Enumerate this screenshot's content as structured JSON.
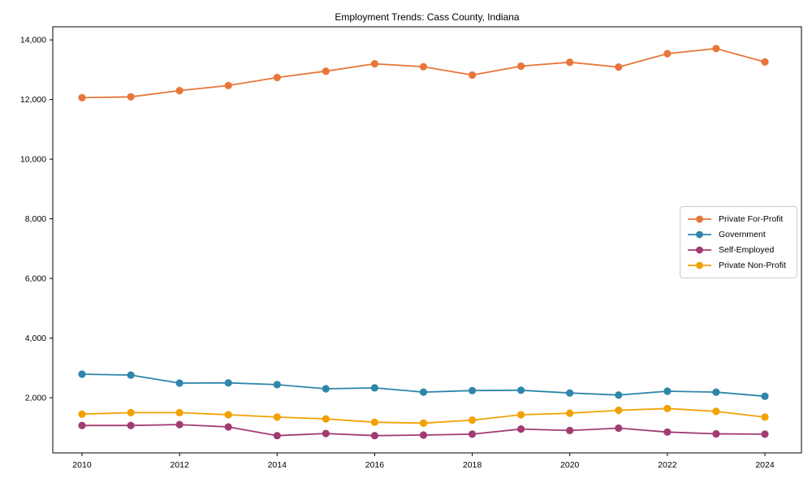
{
  "title": "Employment Trends: Cass County, Indiana",
  "chart_data": {
    "type": "line",
    "title": "Employment Trends: Cass County, Indiana",
    "xlabel": "",
    "ylabel": "",
    "grid": false,
    "legend_position": "center-right",
    "x": [
      2010,
      2011,
      2012,
      2013,
      2014,
      2015,
      2016,
      2017,
      2018,
      2019,
      2020,
      2021,
      2022,
      2023,
      2024
    ],
    "series": [
      {
        "name": "Private For-Profit",
        "color": "#E8763B",
        "marker": "circle",
        "values": [
          12060,
          12090,
          12300,
          12470,
          12740,
          12950,
          13200,
          13100,
          12820,
          13120,
          13250,
          13090,
          13540,
          13710,
          13260
        ]
      },
      {
        "name": "Government",
        "color": "#2E86AB",
        "marker": "circle",
        "values": [
          2790,
          2760,
          2490,
          2500,
          2440,
          2300,
          2330,
          2190,
          2240,
          2250,
          2160,
          2090,
          2220,
          2190,
          2050
        ]
      },
      {
        "name": "Self-Employed",
        "color": "#A23B72",
        "marker": "circle",
        "values": [
          1070,
          1070,
          1100,
          1020,
          730,
          800,
          730,
          750,
          780,
          950,
          900,
          980,
          850,
          790,
          780
        ]
      },
      {
        "name": "Private Non-Profit",
        "color": "#F2A104",
        "marker": "circle",
        "values": [
          1450,
          1500,
          1500,
          1430,
          1350,
          1290,
          1180,
          1150,
          1250,
          1430,
          1480,
          1580,
          1640,
          1540,
          1350
        ]
      }
    ],
    "xticks": {
      "values": [
        2010,
        2012,
        2014,
        2016,
        2018,
        2020,
        2022,
        2024
      ],
      "labels": [
        "2010",
        "2012",
        "2014",
        "2016",
        "2018",
        "2020",
        "2022",
        "2024"
      ]
    },
    "yticks": {
      "values": [
        2000,
        4000,
        6000,
        8000,
        10000,
        12000,
        14000
      ],
      "labels": [
        "2,000",
        "4,000",
        "6,000",
        "8,000",
        "10,000",
        "12,000",
        "14,000"
      ]
    },
    "xlim": [
      2009.401,
      2024.749
    ],
    "ylim": [
      150,
      14440
    ],
    "axis_color": "#000000",
    "tick_label_color": "#000000"
  }
}
